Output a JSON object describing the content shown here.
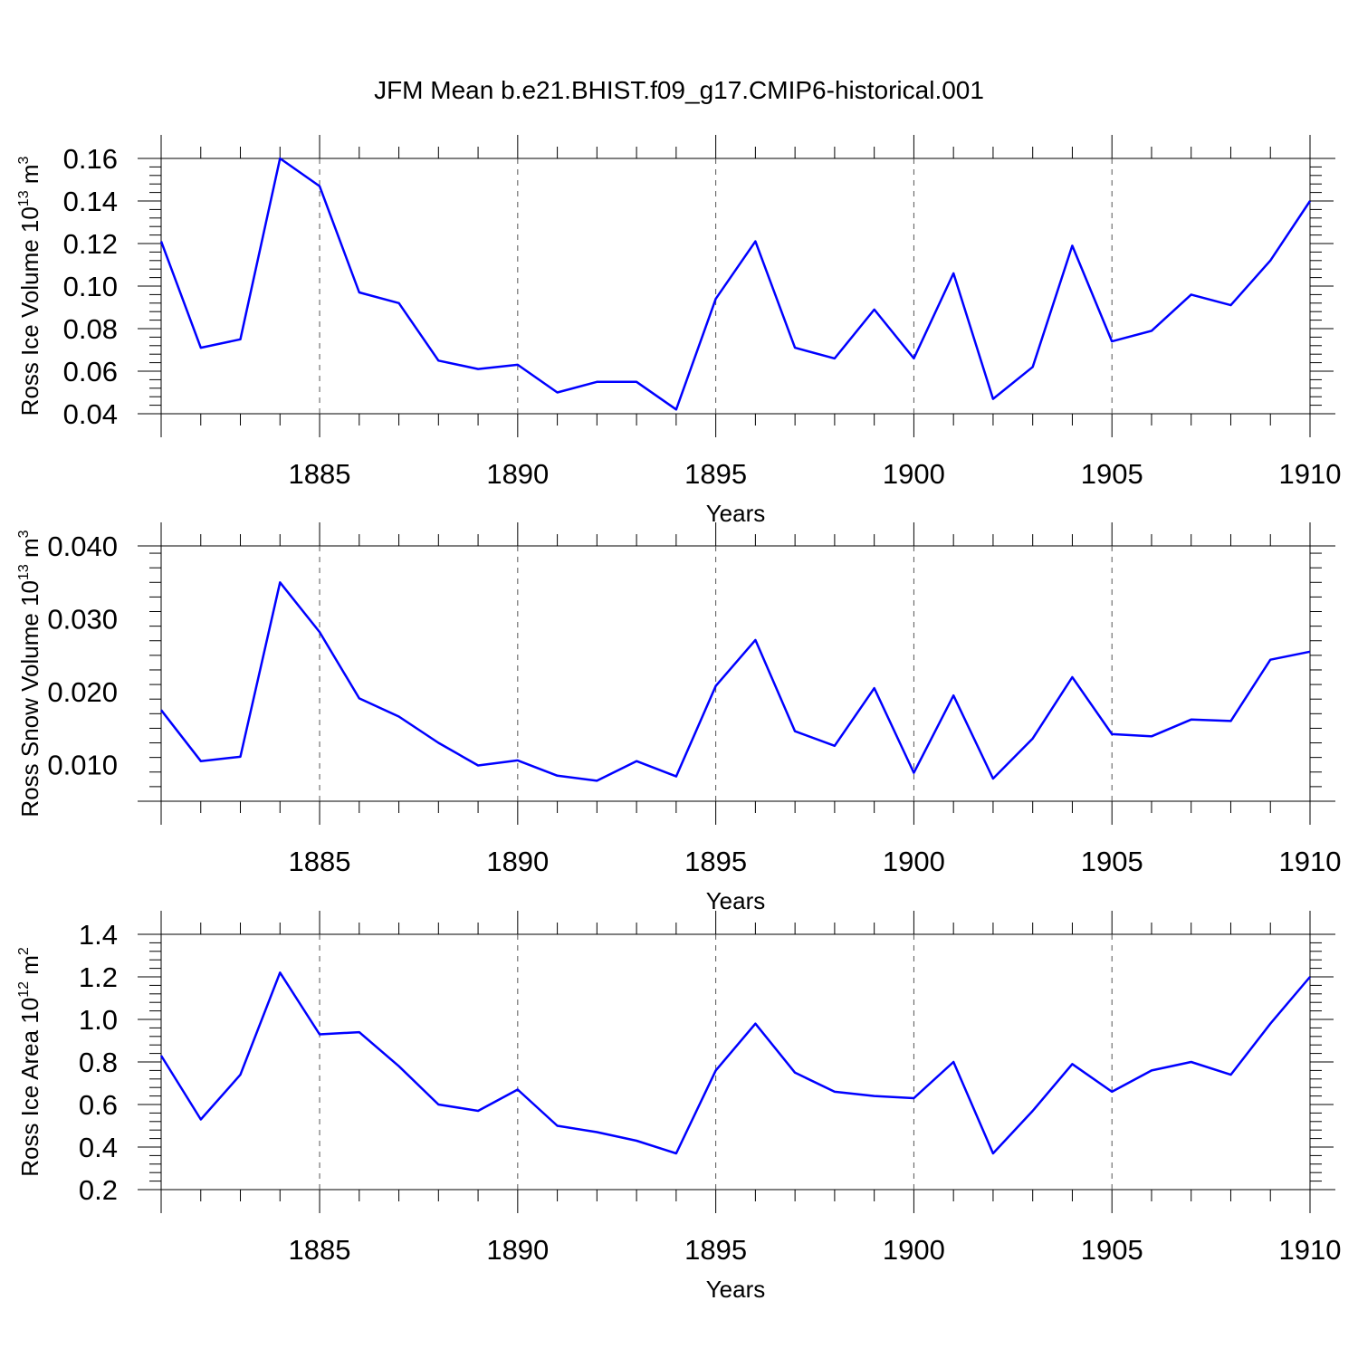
{
  "chart_data": {
    "type": "line",
    "title": "JFM Mean b.e21.BHIST.f09_g17.CMIP6-historical.001",
    "x": [
      1881,
      1882,
      1883,
      1884,
      1885,
      1886,
      1887,
      1888,
      1889,
      1890,
      1891,
      1892,
      1893,
      1894,
      1895,
      1896,
      1897,
      1898,
      1899,
      1900,
      1901,
      1902,
      1903,
      1904,
      1905,
      1906,
      1907,
      1908,
      1909,
      1910
    ],
    "xlim": [
      1881,
      1910
    ],
    "x_ticks": [
      "1885",
      "1890",
      "1895",
      "1900",
      "1905",
      "1910"
    ],
    "panels": [
      {
        "name": "ice-volume",
        "ylabel": "Ross Ice Volume 10",
        "ylabel_sup": "13",
        "ylabel_unit": "m",
        "ylabel_unit_sup": "3",
        "xlabel": "Years",
        "ylim": [
          0.04,
          0.16
        ],
        "y_ticks": [
          "0.04",
          "0.06",
          "0.08",
          "0.10",
          "0.12",
          "0.14",
          "0.16"
        ],
        "color": "#0000ff",
        "values": [
          0.121,
          0.071,
          0.075,
          0.16,
          0.147,
          0.097,
          0.092,
          0.065,
          0.061,
          0.063,
          0.05,
          0.055,
          0.055,
          0.042,
          0.094,
          0.121,
          0.071,
          0.066,
          0.089,
          0.066,
          0.106,
          0.047,
          0.062,
          0.119,
          0.074,
          0.079,
          0.096,
          0.091,
          0.112,
          0.14
        ]
      },
      {
        "name": "snow-volume",
        "ylabel": "Ross Snow Volume 10",
        "ylabel_sup": "13",
        "ylabel_unit": "m",
        "ylabel_unit_sup": "3",
        "xlabel": "Years",
        "ylim": [
          0.005,
          0.04
        ],
        "y_ticks": [
          "0.010",
          "0.020",
          "0.030",
          "0.040"
        ],
        "color": "#0000ff",
        "values": [
          0.0175,
          0.0105,
          0.0111,
          0.035,
          0.0282,
          0.0191,
          0.0166,
          0.013,
          0.0099,
          0.0106,
          0.0085,
          0.0078,
          0.0105,
          0.0084,
          0.0208,
          0.0271,
          0.0146,
          0.0126,
          0.0205,
          0.0089,
          0.0195,
          0.0081,
          0.0136,
          0.022,
          0.0142,
          0.0139,
          0.0162,
          0.016,
          0.0244,
          0.0255
        ]
      },
      {
        "name": "ice-area",
        "ylabel": "Ross Ice Area 10",
        "ylabel_sup": "12",
        "ylabel_unit": "m",
        "ylabel_unit_sup": "2",
        "xlabel": "Years",
        "ylim": [
          0.2,
          1.4
        ],
        "y_ticks": [
          "0.2",
          "0.4",
          "0.6",
          "0.8",
          "1.0",
          "1.2",
          "1.4"
        ],
        "color": "#0000ff",
        "values": [
          0.83,
          0.53,
          0.74,
          1.22,
          0.93,
          0.94,
          0.78,
          0.6,
          0.57,
          0.67,
          0.5,
          0.47,
          0.43,
          0.37,
          0.76,
          0.98,
          0.75,
          0.66,
          0.64,
          0.63,
          0.8,
          0.37,
          0.57,
          0.79,
          0.66,
          0.76,
          0.8,
          0.74,
          0.98,
          1.2
        ]
      }
    ]
  }
}
